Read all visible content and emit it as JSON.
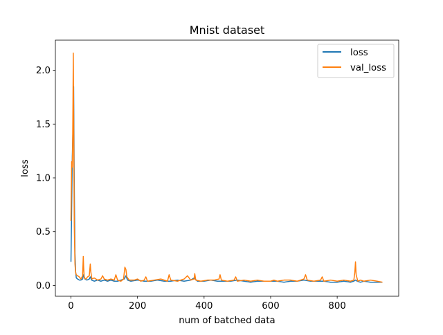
{
  "colors": {
    "loss": "#1f77b4",
    "val_loss": "#ff7f0e"
  },
  "chart_data": {
    "type": "line",
    "title": "Mnist dataset",
    "xlabel": "num of batched data",
    "ylabel": "loss",
    "xlim": [
      -46.85,
      984.85
    ],
    "ylim": [
      -0.1,
      2.28
    ],
    "xticks": [
      0,
      200,
      400,
      600,
      800
    ],
    "xtick_labels": [
      "0",
      "200",
      "400",
      "600",
      "800"
    ],
    "yticks": [
      0.0,
      0.5,
      1.0,
      1.5,
      2.0
    ],
    "ytick_labels": [
      "0.0",
      "0.5",
      "1.0",
      "1.5",
      "2.0"
    ],
    "grid": false,
    "legend": "top-right",
    "series": [
      {
        "name": "loss",
        "color": "#1f77b4",
        "x": [
          0,
          2,
          4,
          6,
          8,
          10,
          12,
          14,
          16,
          20,
          25,
          30,
          35,
          38,
          42,
          48,
          55,
          58,
          62,
          70,
          80,
          90,
          100,
          110,
          120,
          130,
          140,
          150,
          160,
          165,
          170,
          180,
          200,
          220,
          240,
          260,
          280,
          300,
          320,
          340,
          360,
          370,
          380,
          400,
          420,
          440,
          460,
          480,
          500,
          520,
          540,
          560,
          580,
          600,
          620,
          640,
          660,
          680,
          700,
          720,
          740,
          760,
          780,
          800,
          820,
          840,
          850,
          855,
          860,
          870,
          880,
          900,
          920,
          936
        ],
        "y": [
          0.22,
          0.7,
          1.2,
          1.45,
          1.85,
          0.9,
          0.3,
          0.13,
          0.07,
          0.06,
          0.05,
          0.05,
          0.06,
          0.1,
          0.06,
          0.05,
          0.06,
          0.08,
          0.05,
          0.04,
          0.05,
          0.04,
          0.05,
          0.04,
          0.05,
          0.04,
          0.04,
          0.05,
          0.06,
          0.09,
          0.05,
          0.04,
          0.05,
          0.04,
          0.04,
          0.05,
          0.04,
          0.04,
          0.05,
          0.04,
          0.05,
          0.07,
          0.04,
          0.04,
          0.05,
          0.04,
          0.04,
          0.04,
          0.05,
          0.04,
          0.03,
          0.04,
          0.04,
          0.04,
          0.04,
          0.03,
          0.04,
          0.04,
          0.05,
          0.04,
          0.04,
          0.04,
          0.03,
          0.03,
          0.04,
          0.03,
          0.04,
          0.05,
          0.04,
          0.03,
          0.04,
          0.03,
          0.03,
          0.03
        ]
      },
      {
        "name": "val_loss",
        "color": "#ff7f0e",
        "x": [
          0,
          2,
          4,
          5,
          6,
          7,
          8,
          10,
          12,
          14,
          16,
          20,
          25,
          30,
          35,
          37,
          38,
          40,
          45,
          50,
          55,
          58,
          60,
          63,
          70,
          80,
          90,
          95,
          100,
          110,
          120,
          130,
          135,
          140,
          150,
          158,
          162,
          165,
          168,
          175,
          190,
          200,
          210,
          220,
          225,
          230,
          250,
          270,
          290,
          295,
          300,
          320,
          340,
          350,
          360,
          370,
          372,
          375,
          390,
          410,
          430,
          445,
          448,
          452,
          470,
          490,
          495,
          500,
          520,
          540,
          560,
          580,
          600,
          610,
          620,
          640,
          660,
          680,
          700,
          705,
          710,
          730,
          750,
          755,
          760,
          780,
          800,
          820,
          840,
          850,
          853,
          855,
          857,
          862,
          870,
          880,
          900,
          920,
          936
        ],
        "y": [
          0.6,
          1.15,
          1.1,
          1.3,
          1.7,
          2.16,
          1.6,
          0.55,
          0.2,
          0.12,
          0.1,
          0.09,
          0.08,
          0.06,
          0.09,
          0.27,
          0.18,
          0.07,
          0.06,
          0.08,
          0.09,
          0.2,
          0.12,
          0.06,
          0.07,
          0.05,
          0.06,
          0.09,
          0.06,
          0.05,
          0.06,
          0.05,
          0.1,
          0.05,
          0.04,
          0.06,
          0.17,
          0.15,
          0.08,
          0.05,
          0.05,
          0.06,
          0.04,
          0.05,
          0.08,
          0.04,
          0.05,
          0.06,
          0.04,
          0.1,
          0.05,
          0.04,
          0.06,
          0.09,
          0.05,
          0.06,
          0.11,
          0.05,
          0.04,
          0.05,
          0.05,
          0.06,
          0.1,
          0.05,
          0.04,
          0.05,
          0.08,
          0.04,
          0.05,
          0.04,
          0.05,
          0.04,
          0.04,
          0.05,
          0.04,
          0.05,
          0.05,
          0.04,
          0.06,
          0.1,
          0.05,
          0.04,
          0.05,
          0.08,
          0.04,
          0.05,
          0.04,
          0.05,
          0.04,
          0.05,
          0.12,
          0.22,
          0.1,
          0.04,
          0.05,
          0.04,
          0.05,
          0.04,
          0.03
        ]
      }
    ]
  }
}
